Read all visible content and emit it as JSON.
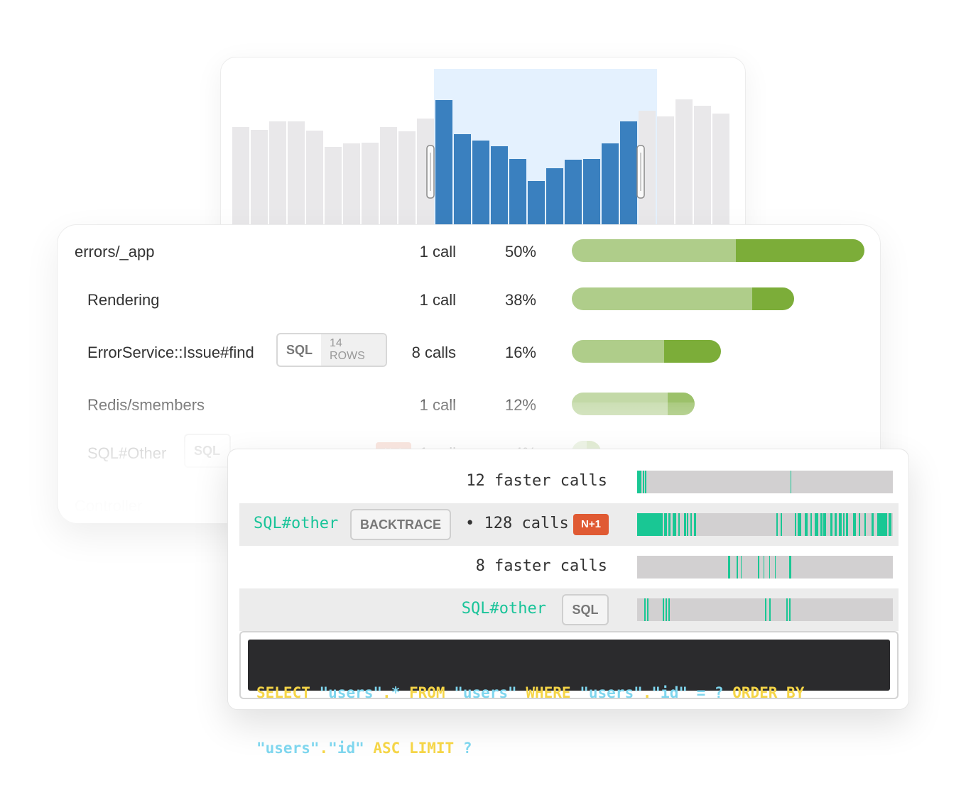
{
  "histogram": {
    "values": [
      138,
      134,
      146,
      146,
      133,
      110,
      115,
      116,
      138,
      132,
      150,
      176,
      128,
      119,
      111,
      93,
      62,
      80,
      92,
      93,
      115,
      146,
      161,
      153,
      177,
      168,
      157
    ],
    "selected_range": [
      11,
      23
    ],
    "colors": {
      "unselected": "#e9e8ea",
      "selected": "#3a80bf",
      "selection_bg": "#e4f1fe"
    }
  },
  "breakdown": {
    "rows": [
      {
        "name": "errors/_app",
        "calls": "1 call",
        "percent": "50%",
        "light_fraction": 0.56,
        "bar_fraction": 1.0
      },
      {
        "name": "Rendering",
        "calls": "1 call",
        "percent": "38%",
        "light_fraction": 0.81,
        "bar_fraction": 0.76
      },
      {
        "name": "ErrorService::Issue#find",
        "tag": "SQL",
        "tag_rows": "14 ROWS",
        "calls": "8 calls",
        "percent": "16%",
        "light_fraction": 0.62,
        "bar_fraction": 0.51
      },
      {
        "name": "Redis/smembers",
        "calls": "1 call",
        "percent": "12%",
        "light_fraction": 0.78,
        "bar_fraction": 0.42
      },
      {
        "name": "SQL#Other",
        "tag": "SQL",
        "badge": "N+1",
        "calls": "1 call",
        "percent": "4%",
        "light_fraction": 0.5,
        "bar_fraction": 0.1
      },
      {
        "name": "Controller"
      }
    ],
    "colors": {
      "light": "#afcd8a",
      "dark": "#7cad39"
    }
  },
  "trace": {
    "rows": [
      {
        "label": "12 faster calls",
        "ticks": [
          [
            0,
            6
          ],
          [
            8,
            2
          ],
          [
            11,
            2
          ],
          [
            216,
            1
          ]
        ]
      },
      {
        "label": "SQL#other",
        "button": "BACKTRACE",
        "calls": "• 128 calls",
        "badge": "N+1",
        "ticks": [
          [
            0,
            36
          ],
          [
            38,
            4
          ],
          [
            44,
            3
          ],
          [
            50,
            5
          ],
          [
            58,
            2
          ],
          [
            66,
            3
          ],
          [
            70,
            2
          ],
          [
            75,
            2
          ],
          [
            80,
            3
          ],
          [
            196,
            2
          ],
          [
            202,
            2
          ],
          [
            222,
            2
          ],
          [
            226,
            5
          ],
          [
            236,
            4
          ],
          [
            244,
            2
          ],
          [
            250,
            5
          ],
          [
            258,
            3
          ],
          [
            262,
            4
          ],
          [
            272,
            3
          ],
          [
            278,
            3
          ],
          [
            284,
            4
          ],
          [
            290,
            2
          ],
          [
            294,
            3
          ],
          [
            304,
            4
          ],
          [
            312,
            2
          ],
          [
            320,
            2
          ],
          [
            330,
            3
          ],
          [
            338,
            14
          ],
          [
            354,
            4
          ]
        ]
      },
      {
        "label": "8 faster calls",
        "ticks": [
          [
            128,
            3
          ],
          [
            140,
            2
          ],
          [
            146,
            1
          ],
          [
            170,
            2
          ],
          [
            178,
            1
          ],
          [
            186,
            1
          ],
          [
            194,
            1
          ],
          [
            214,
            3
          ]
        ]
      },
      {
        "label": "SQL#other",
        "button": "SQL",
        "ticks": [
          [
            10,
            2
          ],
          [
            14,
            2
          ],
          [
            36,
            2
          ],
          [
            40,
            2
          ],
          [
            44,
            2
          ],
          [
            180,
            2
          ],
          [
            186,
            2
          ],
          [
            210,
            2
          ],
          [
            214,
            2
          ]
        ]
      }
    ],
    "sql": {
      "line1": [
        [
          "kw",
          "SELECT "
        ],
        [
          "str",
          "\"users\""
        ],
        [
          "kw",
          "."
        ],
        [
          "str",
          "*"
        ],
        [
          "kw",
          " FROM "
        ],
        [
          "str",
          "\"users\""
        ],
        [
          "kw",
          " WHERE "
        ],
        [
          "str",
          "\"users\""
        ],
        [
          "kw",
          "."
        ],
        [
          "str",
          "\"id\""
        ],
        [
          "str",
          " = ? "
        ],
        [
          "kw",
          "ORDER BY"
        ]
      ],
      "line2": [
        [
          "str",
          "\"users\""
        ],
        [
          "kw",
          "."
        ],
        [
          "str",
          "\"id\""
        ],
        [
          "kw",
          " ASC LIMIT "
        ],
        [
          "str",
          "?"
        ]
      ]
    }
  }
}
